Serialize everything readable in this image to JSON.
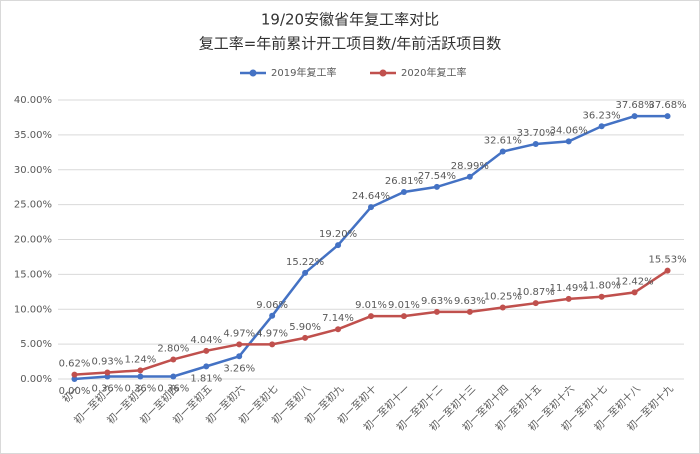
{
  "chart_data": {
    "type": "line",
    "title": "19/20安徽省年复工率对比",
    "subtitle": "复工率=年前累计开工项目数/年前活跃项目数",
    "categories": [
      "初一",
      "初一至初二",
      "初一至初三",
      "初一至初四",
      "初一至初五",
      "初一至初六",
      "初一至初七",
      "初一至初八",
      "初一至初九",
      "初一至初十",
      "初一至初十一",
      "初一至初十二",
      "初一至初十三",
      "初一至初十四",
      "初一至初十五",
      "初一至初十六",
      "初一至初十七",
      "初一至初十八",
      "初一至初十九"
    ],
    "series": [
      {
        "name": "2019年复工率",
        "color": "#4472c4",
        "values": [
          0,
          0.36,
          0.36,
          0.36,
          1.81,
          3.26,
          9.06,
          15.22,
          19.2,
          24.64,
          26.81,
          27.54,
          28.99,
          32.61,
          33.7,
          34.06,
          36.23,
          37.68,
          37.68
        ],
        "value_labels": [
          "0.00%",
          "0.36%",
          "0.36%",
          "0.36%",
          "1.81%",
          "3.26%",
          "9.06%",
          "15.22%",
          "19.20%",
          "24.64%",
          "26.81%",
          "27.54%",
          "28.99%",
          "32.61%",
          "33.70%",
          "34.06%",
          "36.23%",
          "37.68%",
          "37.68%"
        ]
      },
      {
        "name": "2020年复工率",
        "color": "#c0504d",
        "values": [
          0.62,
          0.93,
          1.24,
          2.8,
          4.04,
          4.97,
          4.97,
          5.9,
          7.14,
          9.01,
          9.01,
          9.63,
          9.63,
          10.25,
          10.87,
          11.49,
          11.8,
          12.42,
          15.53
        ],
        "value_labels": [
          "0.62%",
          "0.93%",
          "1.24%",
          "2.80%",
          "4.04%",
          "4.97%",
          "4.97%",
          "5.90%",
          "7.14%",
          "9.01%",
          "9.01%",
          "9.63%",
          "9.63%",
          "10.25%",
          "10.87%",
          "11.49%",
          "11.80%",
          "12.42%",
          "15.53%"
        ]
      }
    ],
    "ylim": [
      0,
      40
    ],
    "yticks": [
      {
        "value": 0,
        "label": "0.00%"
      },
      {
        "value": 5,
        "label": "5.00%"
      },
      {
        "value": 10,
        "label": "10.00%"
      },
      {
        "value": 15,
        "label": "15.00%"
      },
      {
        "value": 20,
        "label": "20.00%"
      },
      {
        "value": 25,
        "label": "25.00%"
      },
      {
        "value": 30,
        "label": "30.00%"
      },
      {
        "value": 35,
        "label": "35.00%"
      },
      {
        "value": 40,
        "label": "40.00%"
      }
    ],
    "grid": true,
    "legend": "top"
  }
}
